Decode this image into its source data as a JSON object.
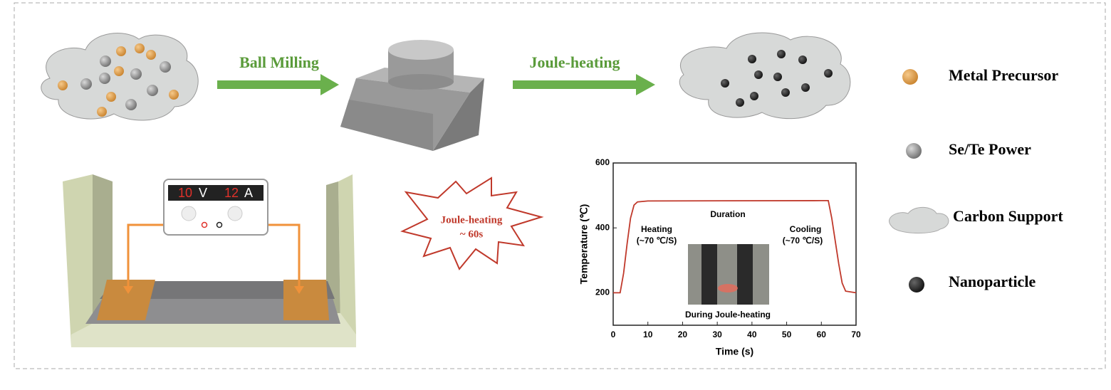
{
  "steps": [
    "Ball Milling",
    "Joule-heating"
  ],
  "legend": [
    "Metal Precursor",
    "Se/Te Power",
    "Carbon Support",
    "Nanoparticle"
  ],
  "power_supply": {
    "voltage": 10,
    "voltage_unit": "V",
    "current": 12,
    "current_unit": "A"
  },
  "burst": [
    "Joule-heating",
    "~ 60s"
  ],
  "plot": {
    "type": "line",
    "x_label": "Time (s)",
    "y_label": "Temperature (℃)",
    "xlim": [
      0,
      70
    ],
    "ylim": [
      100,
      600
    ],
    "xticks": [
      0,
      10,
      20,
      30,
      40,
      50,
      60,
      70
    ],
    "yticks": [
      200,
      400,
      600
    ],
    "x": [
      0,
      2,
      3,
      4,
      5,
      6,
      7,
      10,
      60,
      62,
      63,
      64,
      65,
      66,
      67,
      70
    ],
    "series": [
      {
        "color": "#c0392b",
        "values": [
          200,
          200,
          260,
          350,
          430,
          470,
          480,
          483,
          484,
          484,
          430,
          360,
          290,
          230,
          205,
          200
        ]
      }
    ],
    "annotations": [
      "Duration",
      "Heating",
      "(~70 ℃/S)",
      "Cooling",
      "(~70 ℃/S)",
      "During Joule-heating"
    ]
  }
}
